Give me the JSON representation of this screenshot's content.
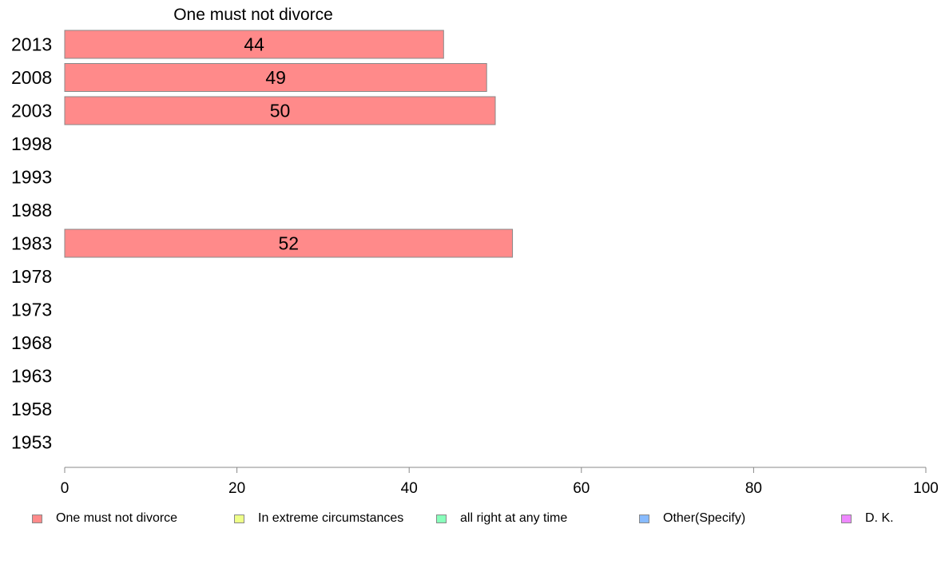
{
  "chart_data": {
    "type": "bar",
    "orientation": "horizontal",
    "title": "One must not divorce",
    "categories": [
      "2013",
      "2008",
      "2003",
      "1998",
      "1993",
      "1988",
      "1983",
      "1978",
      "1973",
      "1968",
      "1963",
      "1958",
      "1953"
    ],
    "series": [
      {
        "name": "One must not divorce",
        "color": "#ff8a8a",
        "values": [
          44,
          49,
          50,
          null,
          null,
          null,
          52,
          null,
          null,
          null,
          null,
          null,
          null
        ],
        "labels": [
          "44",
          "49",
          "50",
          "",
          "",
          "",
          "52",
          "",
          "",
          "",
          "",
          "",
          ""
        ]
      }
    ],
    "xlim": [
      0,
      100
    ],
    "xticks": [
      "0",
      "20",
      "40",
      "60",
      "80",
      "100"
    ],
    "grid": false,
    "legend": {
      "placement": "bottom",
      "entries": [
        {
          "label": "One must not divorce",
          "color": "#ff8a8a"
        },
        {
          "label": "In extreme circumstances",
          "color": "#eeff88"
        },
        {
          "label": "all right at any time",
          "color": "#88ffbb"
        },
        {
          "label": "Other(Specify)",
          "color": "#88bbff"
        },
        {
          "label": "D. K.",
          "color": "#ee88ff"
        }
      ]
    }
  }
}
